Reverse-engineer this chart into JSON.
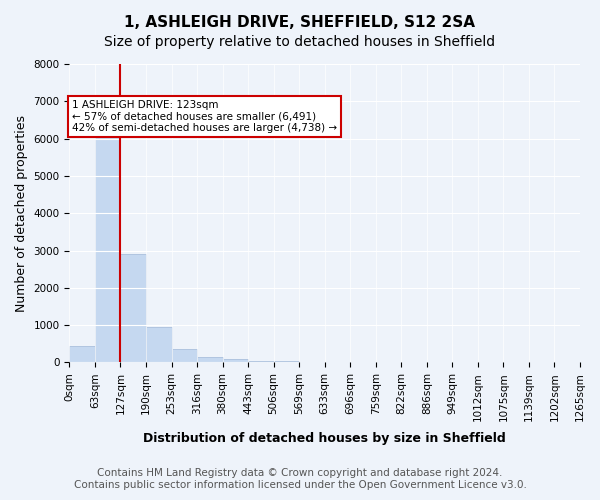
{
  "title": "1, ASHLEIGH DRIVE, SHEFFIELD, S12 2SA",
  "subtitle": "Size of property relative to detached houses in Sheffield",
  "xlabel": "Distribution of detached houses by size in Sheffield",
  "ylabel": "Number of detached properties",
  "bin_labels": [
    "0sqm",
    "63sqm",
    "127sqm",
    "190sqm",
    "253sqm",
    "316sqm",
    "380sqm",
    "443sqm",
    "506sqm",
    "569sqm",
    "633sqm",
    "696sqm",
    "759sqm",
    "822sqm",
    "886sqm",
    "949sqm",
    "1012sqm",
    "1075sqm",
    "1139sqm",
    "1202sqm",
    "1265sqm"
  ],
  "bar_heights": [
    450,
    6400,
    2900,
    950,
    350,
    150,
    90,
    50,
    30,
    15,
    10,
    8,
    5,
    4,
    3,
    2,
    2,
    1,
    1,
    1
  ],
  "bar_color": "#c5d8f0",
  "bar_edge_color": "#a0b8d8",
  "marker_bin": 2,
  "marker_color": "#cc0000",
  "ylim": [
    0,
    8000
  ],
  "yticks": [
    0,
    1000,
    2000,
    3000,
    4000,
    5000,
    6000,
    7000,
    8000
  ],
  "annotation_title": "1 ASHLEIGH DRIVE: 123sqm",
  "annotation_line1": "← 57% of detached houses are smaller (6,491)",
  "annotation_line2": "42% of semi-detached houses are larger (4,738) →",
  "annotation_box_color": "#ffffff",
  "annotation_box_edge": "#cc0000",
  "footer_line1": "Contains HM Land Registry data © Crown copyright and database right 2024.",
  "footer_line2": "Contains public sector information licensed under the Open Government Licence v3.0.",
  "bg_color": "#eef3fa",
  "plot_bg_color": "#eef3fa",
  "title_fontsize": 11,
  "subtitle_fontsize": 10,
  "tick_fontsize": 7.5,
  "ylabel_fontsize": 9,
  "xlabel_fontsize": 9,
  "footer_fontsize": 7.5
}
